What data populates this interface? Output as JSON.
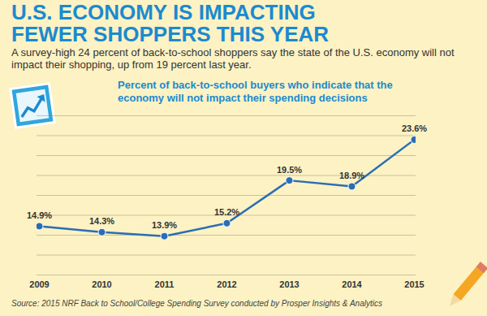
{
  "header": {
    "title": "U.S. ECONOMY IS IMPACTING FEWER SHOPPERS THIS YEAR",
    "subtitle": "A survey-high 24 percent of back-to-school shoppers say the state of the U.S. economy will not impact their shopping, up from 19 percent last year."
  },
  "chart_data": {
    "type": "line",
    "title": "Percent of back-to-school buyers who indicate that the economy will not impact their spending decisions",
    "categories": [
      "2009",
      "2010",
      "2011",
      "2012",
      "2013",
      "2014",
      "2015"
    ],
    "values": [
      14.9,
      14.3,
      13.9,
      15.2,
      19.5,
      18.9,
      23.6
    ],
    "value_labels": [
      "14.9%",
      "14.3%",
      "13.9%",
      "15.2%",
      "19.5%",
      "18.9%",
      "23.6%"
    ],
    "color": "#2a6db5",
    "marker": "circle",
    "ylim": [
      10,
      26
    ],
    "yticks": [
      10,
      12,
      14,
      16,
      18,
      20,
      22,
      24,
      26
    ],
    "grid": true,
    "data_labels": true,
    "tick_labels": "x"
  },
  "footer": {
    "source": "Source: 2015 NRF Back to School/College Spending Survey conducted by Prosper Insights & Analytics"
  }
}
